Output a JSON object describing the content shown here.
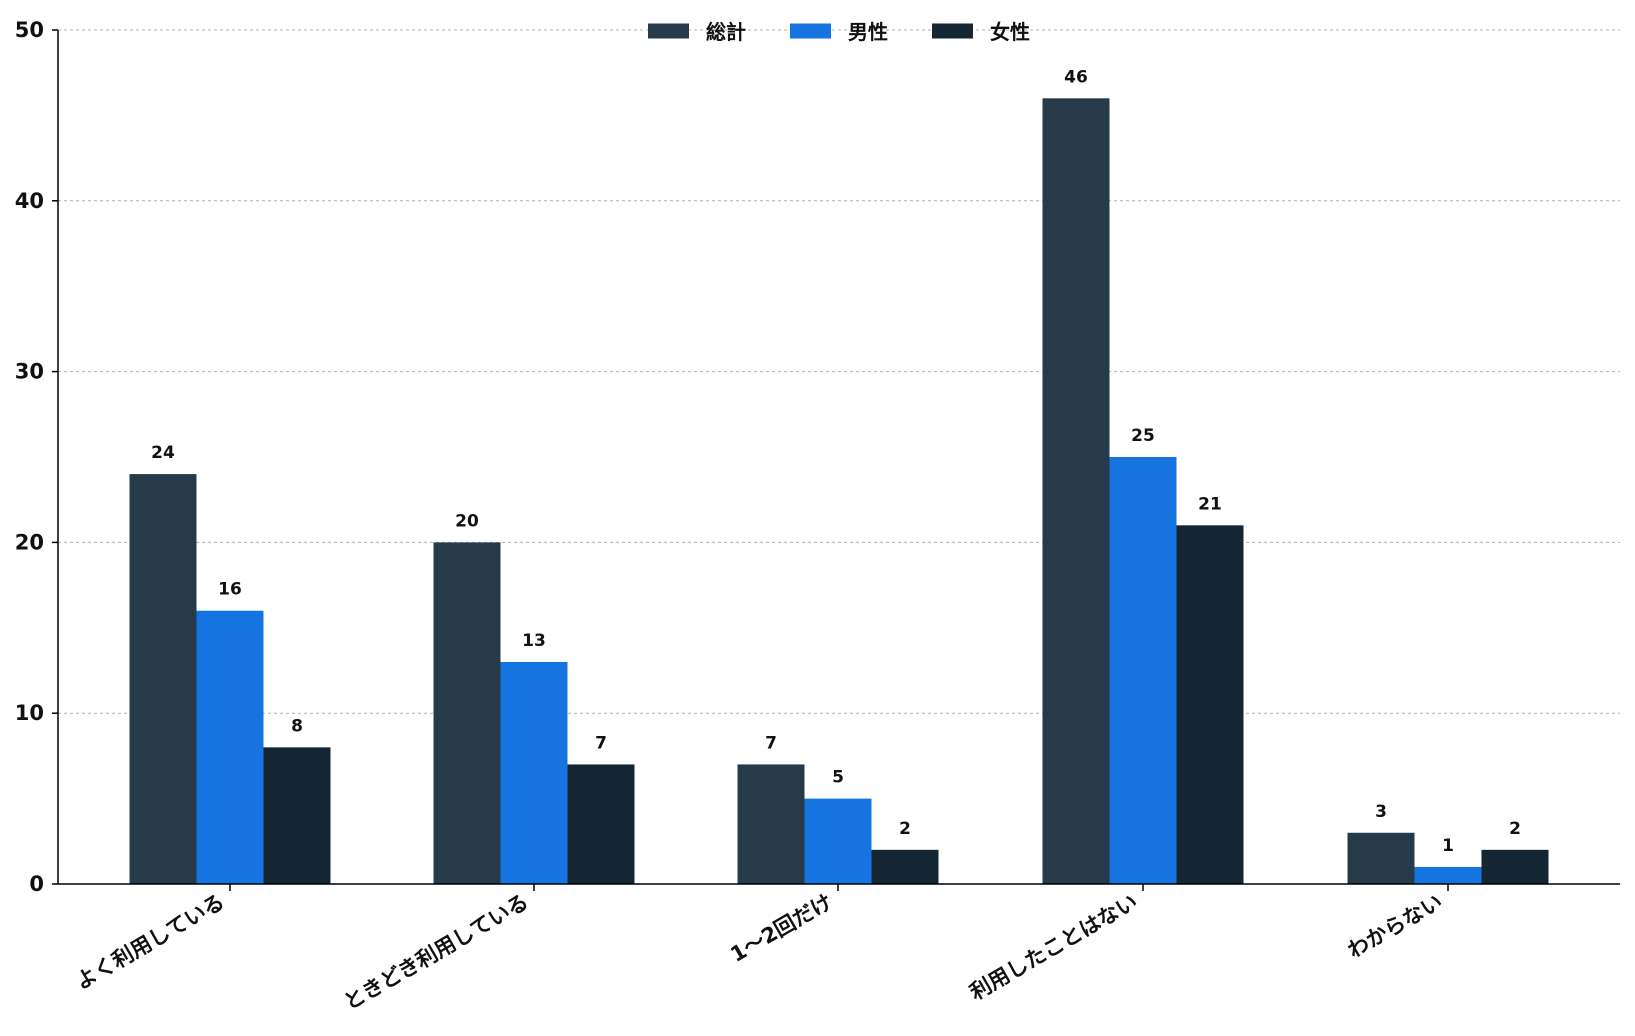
{
  "chart_data": {
    "type": "bar",
    "categories": [
      "よく利用している",
      "ときどき利用している",
      "1～2回だけ",
      "利用したことはない",
      "わからない"
    ],
    "series": [
      {
        "name": "総計",
        "color": "#263b49",
        "values": [
          24,
          20,
          7,
          46,
          3
        ]
      },
      {
        "name": "男性",
        "color": "#1674e0",
        "values": [
          16,
          13,
          5,
          25,
          1
        ]
      },
      {
        "name": "女性",
        "color": "#152633",
        "values": [
          8,
          7,
          2,
          21,
          2
        ]
      }
    ],
    "title": "",
    "xlabel": "",
    "ylabel": "",
    "ylim": [
      0,
      50
    ],
    "yticks": [
      0,
      10,
      20,
      30,
      40,
      50
    ],
    "grid": "horizontal dashed",
    "legend_position": "top-center",
    "show_value_labels": true
  }
}
